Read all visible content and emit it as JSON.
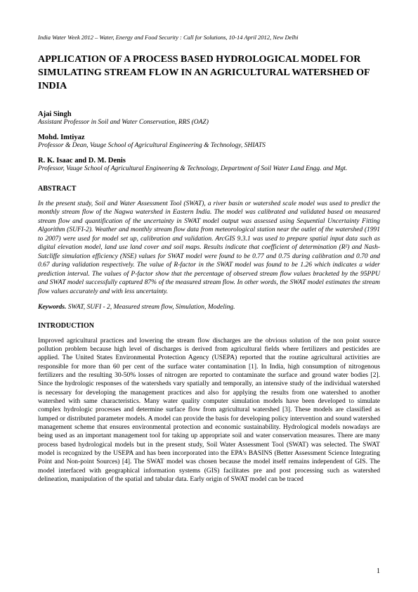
{
  "header": "India Water Week 2012 – Water, Energy and Food Security : Call for Solutions, 10-14 April 2012, New Delhi",
  "title": "APPLICATION OF A PROCESS BASED HYDROLOGICAL MODEL FOR SIMULATING STREAM FLOW IN AN AGRICULTURAL WATERSHED OF INDIA",
  "authors": [
    {
      "name": "Ajai Singh",
      "affil": "Assistant Professor in Soil and Water Conservation,  RRS (OAZ)"
    },
    {
      "name": "Mohd. Imtiyaz",
      "affil": " Professor  & Dean, Vauge School of Agricultural Engineering & Technology, SHIATS"
    },
    {
      "name": "R. K. Isaac and D. M. Denis",
      "affil": "Professor, Vauge School of Agricultural Engineering & Technology, Department of Soil Water Land Engg. and Mgt."
    }
  ],
  "abstract_heading": "ABSTRACT",
  "abstract": "In the present study, Soil and Water Assessment Tool (SWAT), a river basin or watershed scale model was used to predict the monthly stream flow of the Nagwa watershed in Eastern India. The model was calibrated and validated based on measured stream flow and quantification of the uncertainty in SWAT model output was assessed using Sequential Uncertainty Fitting Algorithm (SUFI-2). Weather and monthly stream flow data from meteorological station near the outlet of the watershed (1991 to 2007) were used for model set up, calibration and validation. ArcGIS 9.3.1 was used to prepare spatial input data such as digital elevation model, land use land cover and soil maps. Results indicate that coefficient of determination (R²) and Nash-Sutcliffe simulation efficiency (NSE) values for SWAT model were found to be 0.77 and 0.75 during calibration and 0.70 and 0.67 during validation respectively. The value of R-factor in the SWAT model was found to be 1.26 which indicates a wider prediction interval. The values of P-factor show that the percentage of observed stream flow values bracketed by the 95PPU and SWAT model successfully captured 87% of the measured stream flow. In other words, the SWAT model estimates the stream flow values accurately and with less uncertainty.",
  "keywords_label": "Keywords.",
  "keywords_values": "  SWAT, SUFI - 2, Measured stream flow, Simulation, Modeling.",
  "intro_heading": "INTRODUCTION",
  "intro_body": "Improved agricultural practices and lowering the stream flow discharges are the obvious solution of the non point source pollution problem because high level of discharges is derived from agricultural fields where fertilizers and pesticides are applied. The United States Environmental Protection Agency (USEPA) reported that the routine agricultural activities are responsible for more than 60 per cent of the surface water contamination [1]. In India, high consumption of nitrogenous fertilizers and the resulting 30-50% losses of nitrogen are reported to contaminate the surface and ground water bodies [2]. Since the hydrologic responses of the watersheds vary spatially and temporally, an intensive study of the individual watershed is necessary for developing the management practices and also for applying the results from one watershed to another watershed with same characteristics. Many water quality computer simulation models have been developed to simulate complex hydrologic processes and determine surface flow from agricultural watershed [3]. These models are classified as lumped or distributed parameter models. A model can provide the basis for developing policy intervention and sound watershed management scheme that ensures environmental protection and economic sustainability. Hydrological models nowadays are being used as an important management tool for taking up appropriate soil and water conservation measures. There are many process based hydrological models but in the present study, Soil Water Assessment Tool (SWAT) was selected. The SWAT model is recognized by the USEPA and has been incorporated into the EPA's BASINS (Better Assessment Science Integrating Point and Non-point Sources) [4]. The SWAT model was chosen because the model itself remains independent of GIS. The model interfaced with geographical information systems (GIS) facilitates pre and post processing such as watershed delineation, manipulation of the spatial and tabular data. Early origin of SWAT model can be traced",
  "page_number": "1",
  "colors": {
    "background": "#ffffff",
    "text": "#000000"
  },
  "typography": {
    "header_fontsize": 8.5,
    "title_fontsize": 14,
    "author_name_fontsize": 10.5,
    "author_affil_fontsize": 9.5,
    "heading_fontsize": 10,
    "body_fontsize": 9.5,
    "font_family": "Times New Roman"
  }
}
